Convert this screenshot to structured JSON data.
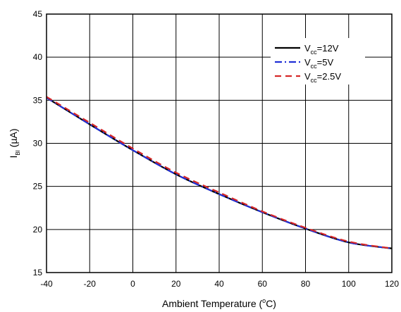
{
  "chart_data": {
    "type": "line",
    "xlabel": "Ambient Temperature (°C)",
    "xlabel_parts": {
      "prefix": "Ambient Temperature (",
      "sup": "o",
      "suffix": "C)"
    },
    "ylabel": "I_BI (µA)",
    "ylabel_parts": {
      "main": "I",
      "sub": "BI",
      "suffix": " (µA)"
    },
    "xlim": [
      -40,
      120
    ],
    "ylim": [
      15,
      45
    ],
    "x_ticks": [
      -40,
      -20,
      0,
      20,
      40,
      60,
      80,
      100,
      120
    ],
    "y_ticks": [
      15,
      20,
      25,
      30,
      35,
      40,
      45
    ],
    "grid": true,
    "legend_position": "top-right",
    "x": [
      -40,
      -20,
      0,
      20,
      40,
      60,
      80,
      100,
      120
    ],
    "series": [
      {
        "name": "Vcc=12V",
        "name_parts": {
          "main": "V",
          "sub": "cc",
          "suffix": "=12V"
        },
        "color": "#000000",
        "dash": "solid",
        "values": [
          35.3,
          32.2,
          29.2,
          26.4,
          24.1,
          22.0,
          20.1,
          18.5,
          17.8
        ]
      },
      {
        "name": "Vcc=5V",
        "name_parts": {
          "main": "V",
          "sub": "cc",
          "suffix": "=5V"
        },
        "color": "#1f2fd6",
        "dash": "dashdot",
        "values": [
          35.3,
          32.2,
          29.2,
          26.4,
          24.1,
          22.0,
          20.1,
          18.5,
          17.8
        ]
      },
      {
        "name": "Vcc=2.5V",
        "name_parts": {
          "main": "V",
          "sub": "cc",
          "suffix": "=2.5V"
        },
        "color": "#d62828",
        "dash": "dashed",
        "values": [
          35.4,
          32.4,
          29.4,
          26.6,
          24.3,
          22.1,
          20.2,
          18.6,
          17.8
        ]
      }
    ]
  }
}
